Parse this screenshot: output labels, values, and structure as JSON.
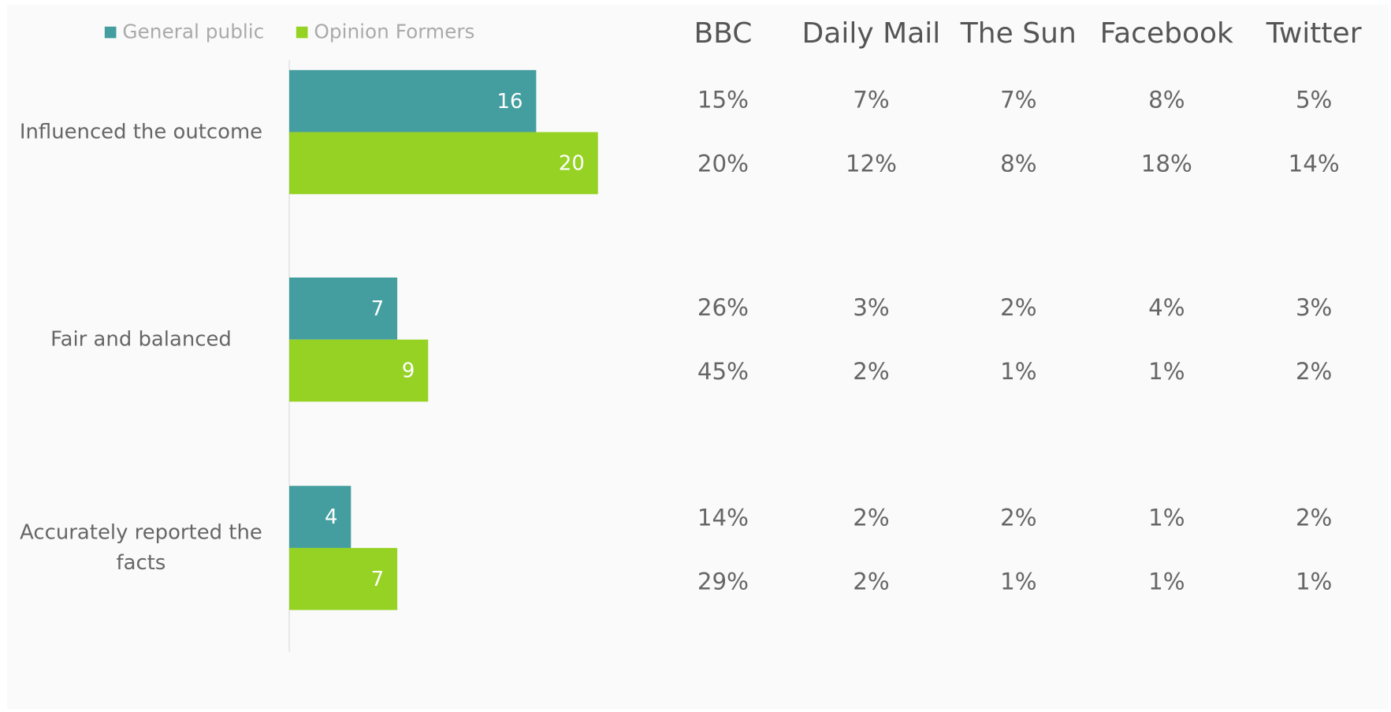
{
  "chart_data": {
    "type": "hbar",
    "categories": [
      "Influenced the outcome",
      "Fair and balanced",
      "Accurately reported the facts"
    ],
    "series": [
      {
        "name": "General public",
        "color": "#449e9f",
        "values": [
          16,
          7,
          4
        ]
      },
      {
        "name": "Opinion Formers",
        "color": "#95d224",
        "values": [
          20,
          9,
          7
        ]
      }
    ],
    "xlim": [
      0,
      20
    ]
  },
  "table": {
    "columns": [
      "BBC",
      "Daily Mail",
      "The Sun",
      "Facebook",
      "Twitter"
    ],
    "rows": [
      [
        "15%",
        "7%",
        "7%",
        "8%",
        "5%"
      ],
      [
        "20%",
        "12%",
        "8%",
        "18%",
        "14%"
      ],
      [
        "26%",
        "3%",
        "2%",
        "4%",
        "3%"
      ],
      [
        "45%",
        "2%",
        "1%",
        "1%",
        "2%"
      ],
      [
        "14%",
        "2%",
        "2%",
        "1%",
        "2%"
      ],
      [
        "29%",
        "2%",
        "1%",
        "1%",
        "1%"
      ]
    ]
  }
}
